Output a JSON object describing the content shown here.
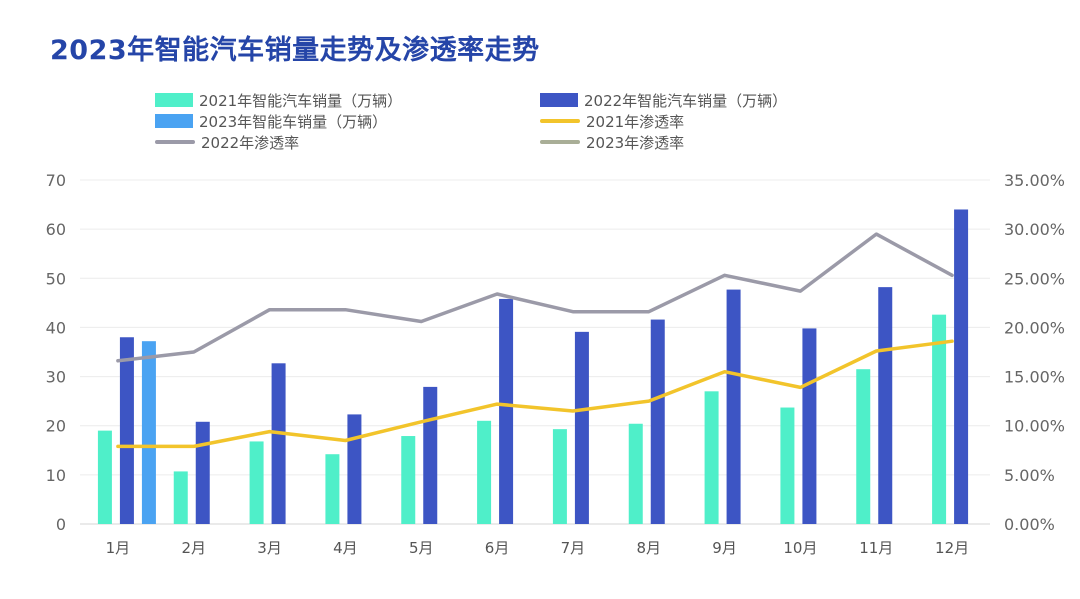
{
  "title": "2023年智能汽车销量走势及渗透率走势",
  "chart_data": {
    "type": "bar",
    "title": "2023年智能汽车销量走势及渗透率走势",
    "categories": [
      "1月",
      "2月",
      "3月",
      "4月",
      "5月",
      "6月",
      "7月",
      "8月",
      "9月",
      "10月",
      "11月",
      "12月"
    ],
    "y_left": {
      "ylim": [
        0,
        70
      ],
      "ticks": [
        "0",
        "10",
        "20",
        "30",
        "40",
        "50",
        "60",
        "70"
      ]
    },
    "y_right": {
      "ylim": [
        0,
        0.35
      ],
      "ticks": [
        "0.00%",
        "5.00%",
        "10.00%",
        "15.00%",
        "20.00%",
        "25.00%",
        "30.00%",
        "35.00%"
      ]
    },
    "grid": true,
    "legend_position": "top",
    "series": [
      {
        "name": "2021年智能汽车销量（万辆）",
        "type": "bar",
        "axis": "left",
        "color": "#4fefc9",
        "values": [
          19,
          10.7,
          16.8,
          14.2,
          17.9,
          21,
          19.3,
          20.4,
          27,
          23.7,
          31.5,
          42.6
        ]
      },
      {
        "name": "2022年智能汽车销量（万辆）",
        "type": "bar",
        "axis": "left",
        "color": "#3d55c4",
        "values": [
          38,
          20.8,
          32.7,
          22.3,
          27.9,
          45.8,
          39.1,
          41.6,
          47.7,
          39.8,
          48.2,
          64
        ]
      },
      {
        "name": "2023年智能车销量（万辆）",
        "type": "bar",
        "axis": "left",
        "color": "#4aa3f2",
        "values": [
          37.2,
          null,
          null,
          null,
          null,
          null,
          null,
          null,
          null,
          null,
          null,
          null
        ]
      },
      {
        "name": "2021年渗透率",
        "type": "line",
        "axis": "right",
        "color": "#f2c42b",
        "values": [
          0.079,
          0.079,
          0.094,
          0.085,
          0.104,
          0.122,
          0.115,
          0.125,
          0.155,
          0.139,
          0.176,
          0.186
        ]
      },
      {
        "name": "2022年渗透率",
        "type": "line",
        "axis": "right",
        "color": "#9b9aa8",
        "values": [
          0.166,
          0.175,
          0.218,
          0.218,
          0.206,
          0.234,
          0.216,
          0.216,
          0.253,
          0.237,
          0.295,
          0.253
        ]
      },
      {
        "name": "2023年渗透率",
        "type": "line",
        "axis": "right",
        "color": "#a9ae97",
        "values": [
          null,
          null,
          null,
          null,
          null,
          null,
          null,
          null,
          null,
          null,
          null,
          null
        ]
      }
    ]
  }
}
